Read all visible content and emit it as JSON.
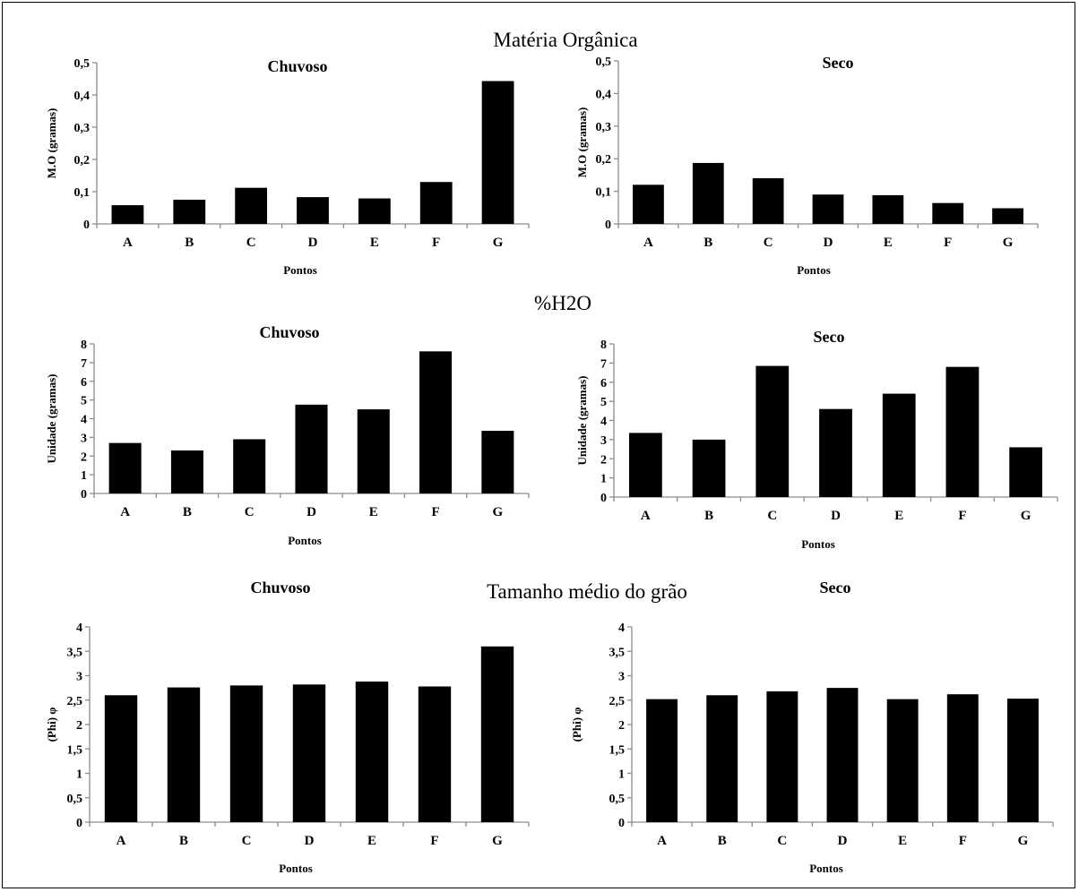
{
  "group_titles": {
    "mo": "Matéria Orgânica",
    "h2o": "%H2O",
    "grain": "Tamanho médio do grão"
  },
  "colors": {
    "bar": "#000000",
    "axis": "#8c8c8c",
    "background": "#ffffff"
  },
  "chart_data": [
    {
      "type": "bar",
      "title": "Chuvoso",
      "xlabel": "Pontos",
      "ylabel": "M.O (gramas)",
      "categories": [
        "A",
        "B",
        "C",
        "D",
        "E",
        "F",
        "G"
      ],
      "values": [
        0.058,
        0.075,
        0.112,
        0.083,
        0.079,
        0.13,
        0.443
      ],
      "ylim": [
        0,
        0.5
      ],
      "yticks": [
        "0",
        "0,1",
        "0,2",
        "0,3",
        "0,4",
        "0,5"
      ],
      "grid": false
    },
    {
      "type": "bar",
      "title": "Seco",
      "xlabel": "Pontos",
      "ylabel": "M.O (gramas)",
      "categories": [
        "A",
        "B",
        "C",
        "D",
        "E",
        "F",
        "G"
      ],
      "values": [
        0.12,
        0.187,
        0.14,
        0.09,
        0.088,
        0.064,
        0.048
      ],
      "ylim": [
        0,
        0.5
      ],
      "yticks": [
        "0",
        "0,1",
        "0,2",
        "0,3",
        "0,4",
        "0,5"
      ],
      "grid": false
    },
    {
      "type": "bar",
      "title": "Chuvoso",
      "xlabel": "Pontos",
      "ylabel": "Unidade (gramas)",
      "categories": [
        "A",
        "B",
        "C",
        "D",
        "E",
        "F",
        "G"
      ],
      "values": [
        2.7,
        2.3,
        2.9,
        4.75,
        4.5,
        7.6,
        3.35
      ],
      "ylim": [
        0,
        8
      ],
      "yticks": [
        "0",
        "1",
        "2",
        "3",
        "4",
        "5",
        "6",
        "7",
        "8"
      ],
      "grid": false
    },
    {
      "type": "bar",
      "title": "Seco",
      "xlabel": "Pontos",
      "ylabel": "Unidade (gramas)",
      "categories": [
        "A",
        "B",
        "C",
        "D",
        "E",
        "F",
        "G"
      ],
      "values": [
        3.35,
        3.0,
        6.85,
        4.6,
        5.4,
        6.8,
        2.6
      ],
      "ylim": [
        0,
        8
      ],
      "yticks": [
        "0",
        "1",
        "2",
        "3",
        "4",
        "5",
        "6",
        "7",
        "8"
      ],
      "grid": false
    },
    {
      "type": "bar",
      "title": "Chuvoso",
      "xlabel": "Pontos",
      "ylabel": "(Phi) φ",
      "categories": [
        "A",
        "B",
        "C",
        "D",
        "E",
        "F",
        "G"
      ],
      "values": [
        2.6,
        2.76,
        2.8,
        2.82,
        2.88,
        2.78,
        3.6
      ],
      "ylim": [
        0,
        4
      ],
      "yticks": [
        "0",
        "0,5",
        "1",
        "1,5",
        "2",
        "2,5",
        "3",
        "3,5",
        "4"
      ],
      "grid": false
    },
    {
      "type": "bar",
      "title": "Seco",
      "xlabel": "Pontos",
      "ylabel": "(Phi) φ",
      "categories": [
        "A",
        "B",
        "C",
        "D",
        "E",
        "F",
        "G"
      ],
      "values": [
        2.52,
        2.6,
        2.68,
        2.75,
        2.52,
        2.62,
        2.53
      ],
      "ylim": [
        0,
        4
      ],
      "yticks": [
        "0",
        "0,5",
        "1",
        "1,5",
        "2",
        "2,5",
        "3",
        "3,5",
        "4"
      ],
      "grid": false
    }
  ]
}
